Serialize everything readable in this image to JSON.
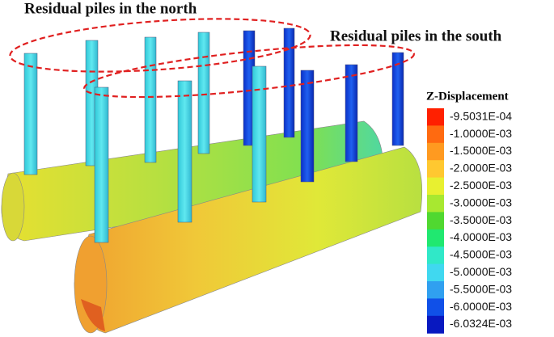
{
  "annotations": {
    "north": "Residual piles in the north",
    "south": "Residual piles in the south"
  },
  "legend": {
    "title": "Z-Displacement",
    "entries": [
      {
        "label": "-9.5031E-04",
        "color": "#ff2000"
      },
      {
        "label": "-1.0000E-03",
        "color": "#ff6a10"
      },
      {
        "label": "-1.5000E-03",
        "color": "#ff9a20"
      },
      {
        "label": "-2.0000E-03",
        "color": "#ffc830"
      },
      {
        "label": "-2.5000E-03",
        "color": "#e8f030"
      },
      {
        "label": "-3.0000E-03",
        "color": "#a8e830"
      },
      {
        "label": "-3.5000E-03",
        "color": "#50d830"
      },
      {
        "label": "-4.0000E-03",
        "color": "#20e870"
      },
      {
        "label": "-4.5000E-03",
        "color": "#30e8c8"
      },
      {
        "label": "-5.0000E-03",
        "color": "#40d8f0"
      },
      {
        "label": "-5.5000E-03",
        "color": "#30a0f0"
      },
      {
        "label": "-6.0000E-03",
        "color": "#1050e8"
      },
      {
        "label": "-6.0324E-03",
        "color": "#0818c0"
      }
    ]
  }
}
